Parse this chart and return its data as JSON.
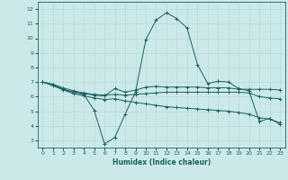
{
  "xlabel": "Humidex (Indice chaleur)",
  "xlim": [
    -0.5,
    23.5
  ],
  "ylim": [
    2.5,
    12.5
  ],
  "xticks": [
    0,
    1,
    2,
    3,
    4,
    5,
    6,
    7,
    8,
    9,
    10,
    11,
    12,
    13,
    14,
    15,
    16,
    17,
    18,
    19,
    20,
    21,
    22,
    23
  ],
  "yticks": [
    3,
    4,
    5,
    6,
    7,
    8,
    9,
    10,
    11,
    12
  ],
  "bg_color": "#cce9e9",
  "grid_color": "#b8d8d8",
  "line_color": "#1a6060",
  "line1_x": [
    0,
    1,
    2,
    3,
    4,
    5,
    6,
    7,
    8,
    9,
    10,
    11,
    12,
    13,
    14,
    15,
    16,
    17,
    18,
    19,
    20,
    21,
    22,
    23
  ],
  "line1_y": [
    7.0,
    6.8,
    6.5,
    6.3,
    6.15,
    5.05,
    2.75,
    3.2,
    4.8,
    6.3,
    9.9,
    11.25,
    11.75,
    11.35,
    10.7,
    8.2,
    6.9,
    7.05,
    7.0,
    6.55,
    6.4,
    4.3,
    4.5,
    4.1
  ],
  "line2_x": [
    0,
    1,
    2,
    3,
    4,
    5,
    6,
    7,
    8,
    9,
    10,
    11,
    12,
    13,
    14,
    15,
    16,
    17,
    18,
    19,
    20,
    21,
    22,
    23
  ],
  "line2_y": [
    7.0,
    6.8,
    6.5,
    6.3,
    6.2,
    6.1,
    6.05,
    6.55,
    6.3,
    6.45,
    6.65,
    6.7,
    6.65,
    6.65,
    6.65,
    6.65,
    6.6,
    6.6,
    6.6,
    6.5,
    6.5,
    6.5,
    6.5,
    6.45
  ],
  "line3_x": [
    0,
    1,
    2,
    3,
    4,
    5,
    6,
    7,
    8,
    9,
    10,
    11,
    12,
    13,
    14,
    15,
    16,
    17,
    18,
    19,
    20,
    21,
    22,
    23
  ],
  "line3_y": [
    7.0,
    6.85,
    6.6,
    6.4,
    6.25,
    6.15,
    6.1,
    6.15,
    6.1,
    6.15,
    6.2,
    6.25,
    6.3,
    6.3,
    6.3,
    6.3,
    6.3,
    6.3,
    6.3,
    6.3,
    6.25,
    6.0,
    5.9,
    5.85
  ],
  "line4_x": [
    0,
    1,
    2,
    3,
    4,
    5,
    6,
    7,
    8,
    9,
    10,
    11,
    12,
    13,
    14,
    15,
    16,
    17,
    18,
    19,
    20,
    21,
    22,
    23
  ],
  "line4_y": [
    7.0,
    6.75,
    6.45,
    6.2,
    6.05,
    5.9,
    5.8,
    5.85,
    5.7,
    5.6,
    5.5,
    5.4,
    5.3,
    5.25,
    5.2,
    5.15,
    5.1,
    5.05,
    5.0,
    4.9,
    4.8,
    4.55,
    4.45,
    4.2
  ]
}
